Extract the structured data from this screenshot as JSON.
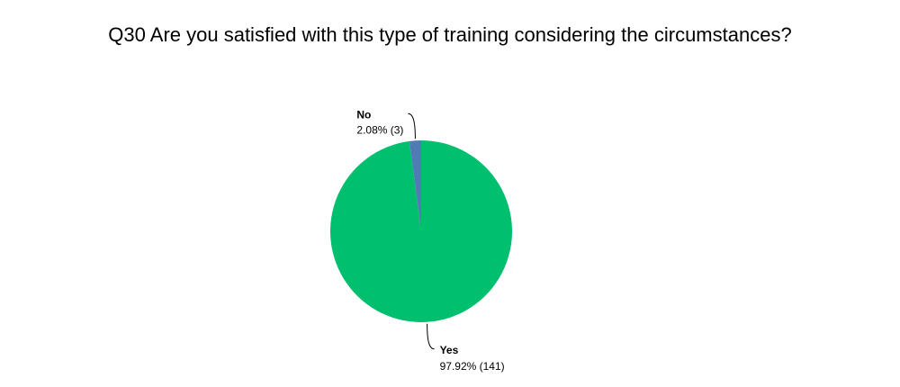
{
  "chart_data": {
    "type": "pie",
    "title": "Q30 Are you satisfied with this type of training considering the circumstances?",
    "categories": [
      "Yes",
      "No"
    ],
    "values": [
      97.92,
      2.08
    ],
    "value_labels": [
      "97.92% (141)",
      "2.08% (3)"
    ],
    "colors": [
      "#00bf6f",
      "#507cb6"
    ]
  }
}
